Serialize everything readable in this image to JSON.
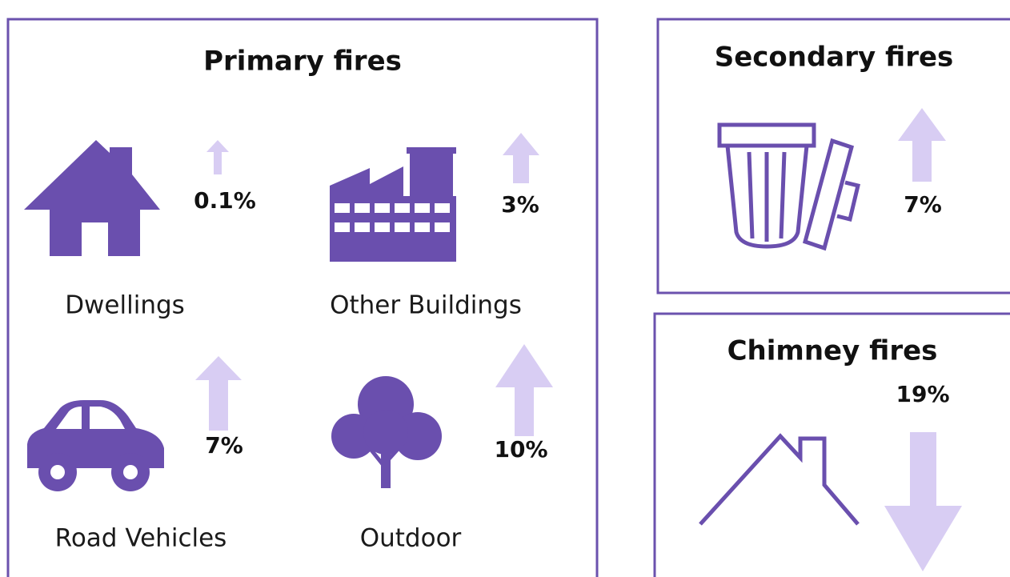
{
  "panels": [
    {
      "title": "Primary fires",
      "items": [
        {
          "label": "Dwellings",
          "change": "0.1%"
        },
        {
          "label": "Other Buildings",
          "change": "3%"
        },
        {
          "label": "Road Vehicles",
          "change": "7%"
        },
        {
          "label": "Outdoor",
          "change": "10%"
        }
      ]
    },
    {
      "title": "Secondary fires",
      "change": "7%"
    },
    {
      "title": "Chimney fires",
      "change": "19%"
    }
  ]
}
